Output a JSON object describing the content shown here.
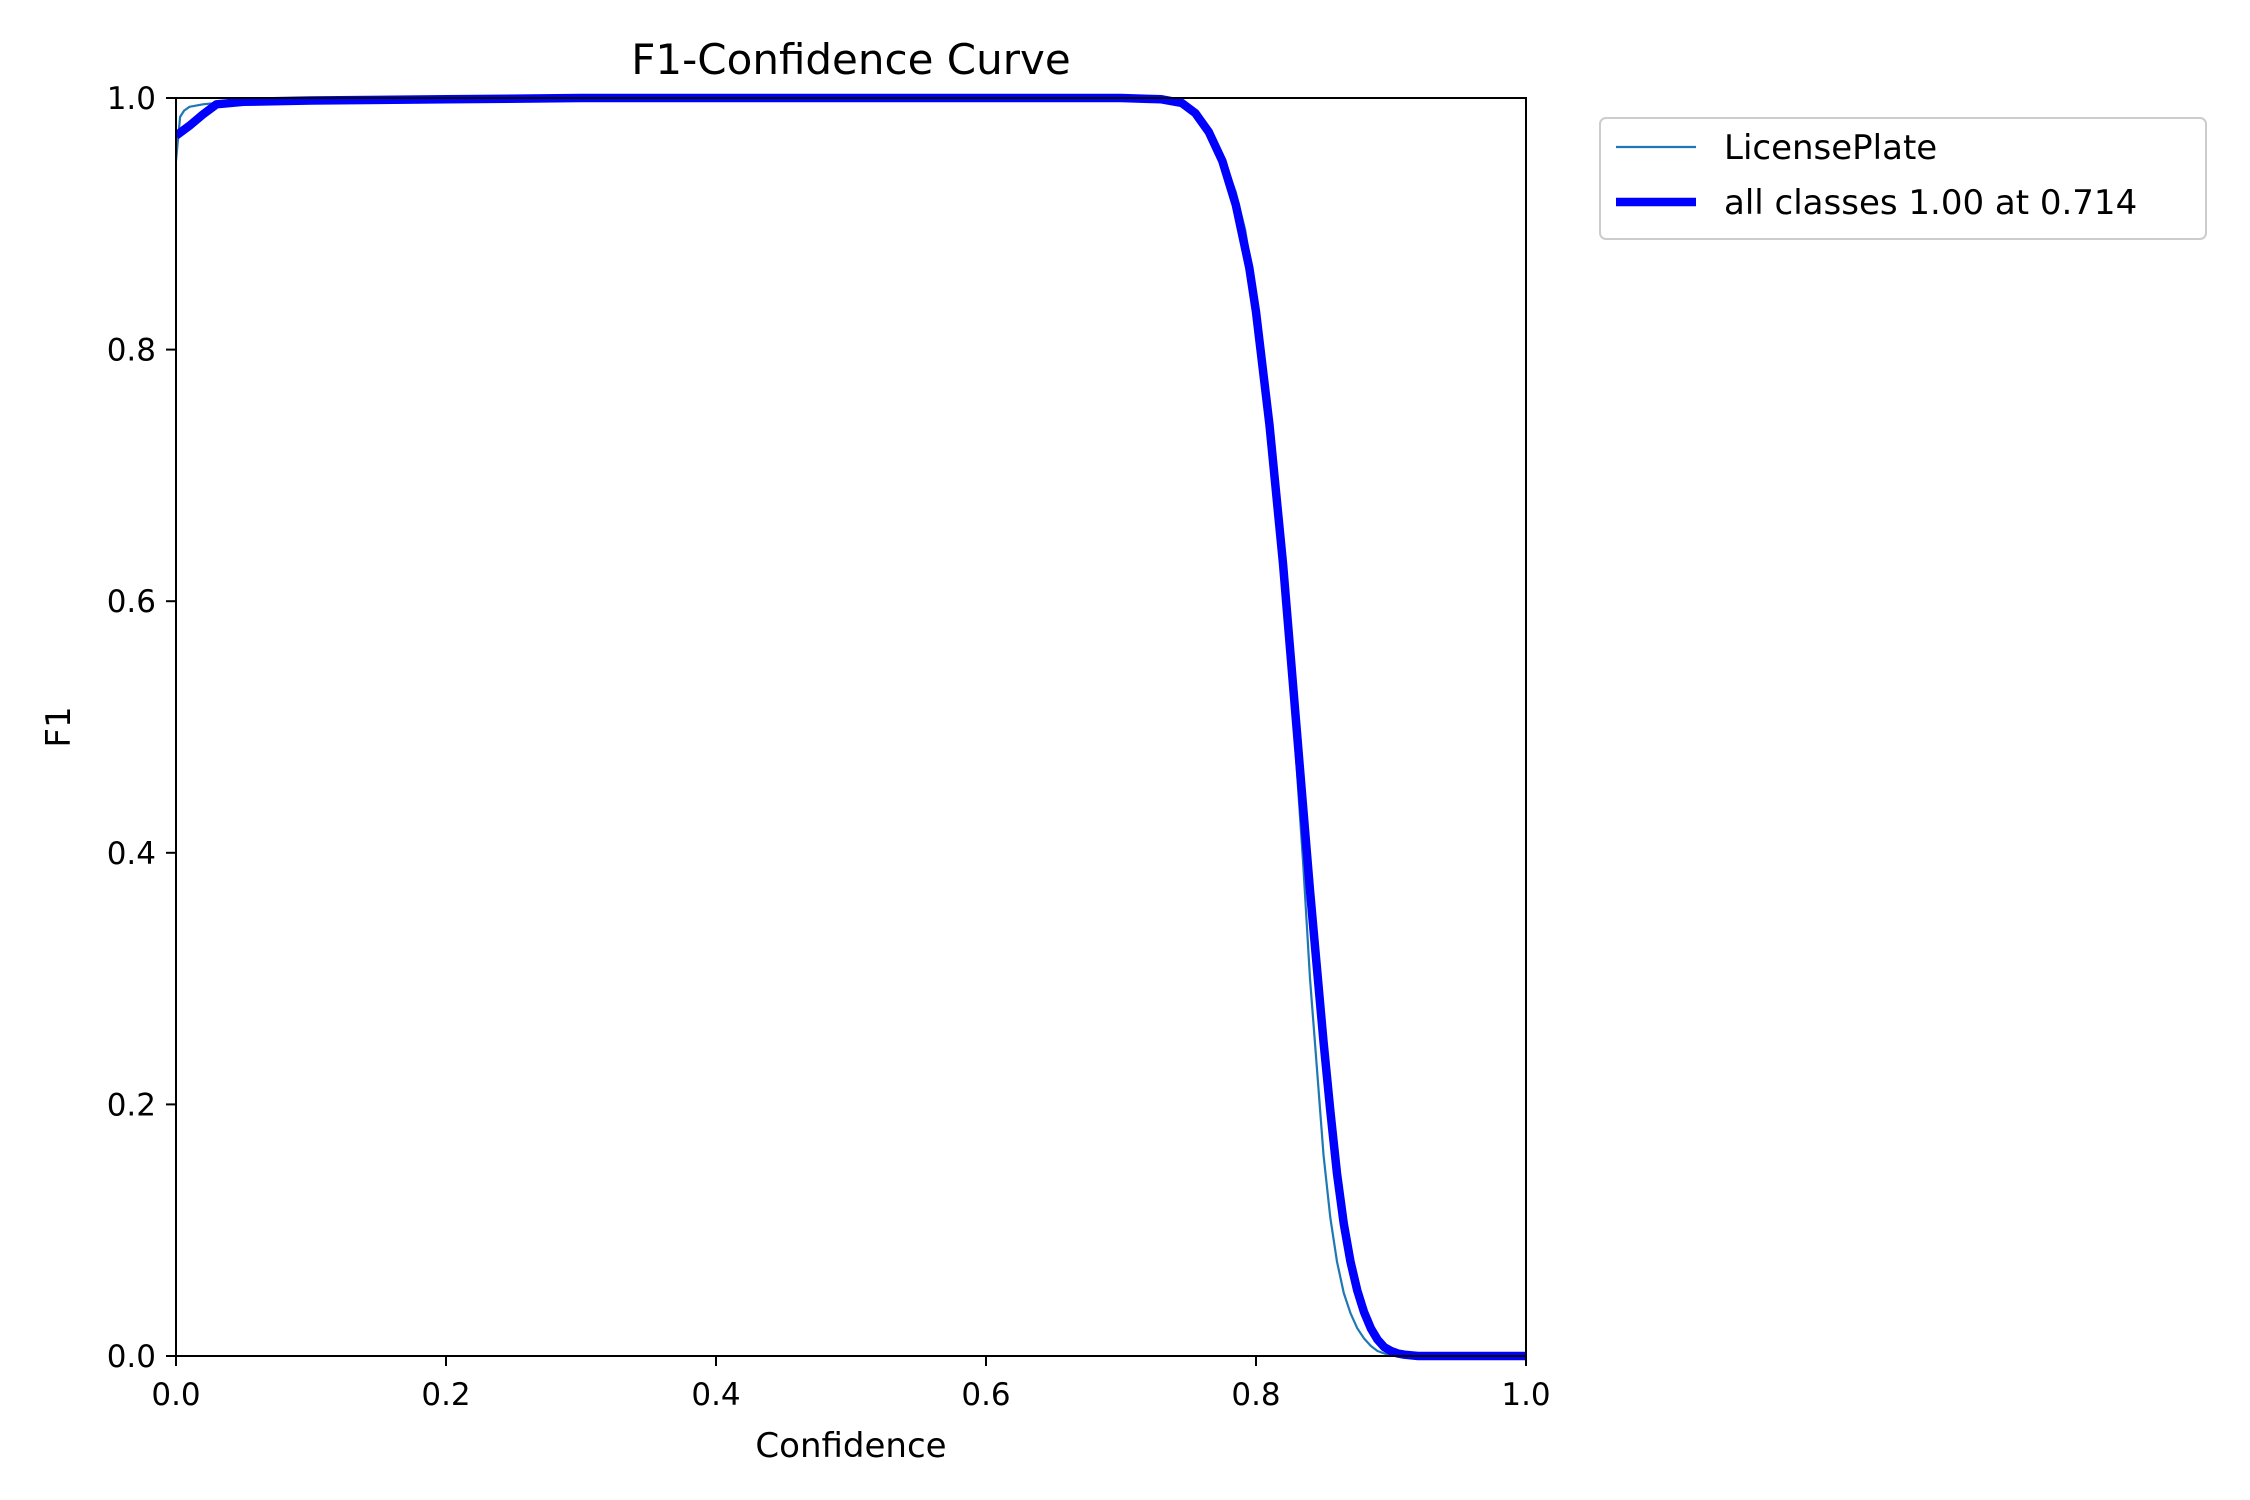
{
  "chart_data": {
    "type": "line",
    "title": "F1-Confidence Curve",
    "xlabel": "Confidence",
    "ylabel": "F1",
    "xlim": [
      0.0,
      1.0
    ],
    "ylim": [
      0.0,
      1.0
    ],
    "xticks": [
      "0.0",
      "0.2",
      "0.4",
      "0.6",
      "0.8",
      "1.0"
    ],
    "yticks": [
      "0.0",
      "0.2",
      "0.4",
      "0.6",
      "0.8",
      "1.0"
    ],
    "grid": false,
    "legend_position": "outside-top-right",
    "series": [
      {
        "name": "LicensePlate",
        "color": "#1f77b4",
        "width": "thin",
        "x": [
          0.0,
          0.003,
          0.006,
          0.01,
          0.02,
          0.03,
          0.05,
          0.1,
          0.2,
          0.3,
          0.4,
          0.5,
          0.6,
          0.7,
          0.73,
          0.745,
          0.755,
          0.765,
          0.775,
          0.785,
          0.792,
          0.8,
          0.805,
          0.81,
          0.815,
          0.82,
          0.825,
          0.83,
          0.835,
          0.84,
          0.845,
          0.85,
          0.855,
          0.86,
          0.865,
          0.87,
          0.875,
          0.88,
          0.885,
          0.89,
          0.895,
          0.9,
          0.905,
          0.91,
          0.92,
          0.95,
          1.0
        ],
        "y": [
          0.95,
          0.985,
          0.99,
          0.993,
          0.995,
          0.996,
          0.997,
          0.998,
          0.999,
          1.0,
          1.0,
          1.0,
          1.0,
          1.0,
          1.0,
          0.998,
          0.99,
          0.975,
          0.955,
          0.925,
          0.895,
          0.84,
          0.8,
          0.75,
          0.7,
          0.63,
          0.55,
          0.47,
          0.39,
          0.3,
          0.23,
          0.16,
          0.11,
          0.075,
          0.05,
          0.034,
          0.022,
          0.014,
          0.008,
          0.004,
          0.002,
          0.001,
          0.0,
          0.0,
          0.0,
          0.0,
          0.0
        ]
      },
      {
        "name": "all classes 1.00 at 0.714",
        "color": "#0000ff",
        "width": "thick",
        "x": [
          0.0,
          0.01,
          0.02,
          0.03,
          0.05,
          0.1,
          0.2,
          0.3,
          0.4,
          0.5,
          0.6,
          0.7,
          0.73,
          0.745,
          0.755,
          0.765,
          0.775,
          0.785,
          0.795,
          0.8,
          0.81,
          0.82,
          0.83,
          0.84,
          0.85,
          0.855,
          0.86,
          0.865,
          0.87,
          0.875,
          0.88,
          0.885,
          0.89,
          0.895,
          0.9,
          0.905,
          0.91,
          0.92,
          0.95,
          1.0
        ],
        "y": [
          0.97,
          0.978,
          0.987,
          0.995,
          0.997,
          0.998,
          0.999,
          1.0,
          1.0,
          1.0,
          1.0,
          1.0,
          0.999,
          0.996,
          0.988,
          0.973,
          0.95,
          0.915,
          0.865,
          0.83,
          0.74,
          0.63,
          0.5,
          0.37,
          0.25,
          0.195,
          0.145,
          0.105,
          0.075,
          0.052,
          0.035,
          0.022,
          0.013,
          0.007,
          0.004,
          0.002,
          0.001,
          0.0,
          0.0,
          0.0
        ]
      }
    ]
  }
}
